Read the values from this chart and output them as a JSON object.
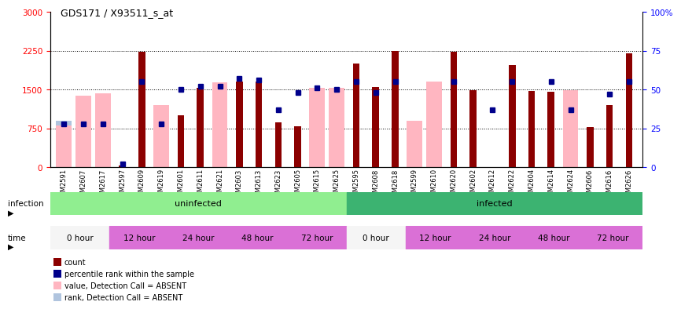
{
  "title": "GDS171 / X93511_s_at",
  "samples": [
    "GSM2591",
    "GSM2607",
    "GSM2617",
    "GSM2597",
    "GSM2609",
    "GSM2619",
    "GSM2601",
    "GSM2611",
    "GSM2621",
    "GSM2603",
    "GSM2613",
    "GSM2623",
    "GSM2605",
    "GSM2615",
    "GSM2625",
    "GSM2595",
    "GSM2608",
    "GSM2618",
    "GSM2599",
    "GSM2610",
    "GSM2620",
    "GSM2602",
    "GSM2612",
    "GSM2622",
    "GSM2604",
    "GSM2614",
    "GSM2624",
    "GSM2606",
    "GSM2616",
    "GSM2626"
  ],
  "count": [
    null,
    null,
    null,
    30,
    2230,
    null,
    1000,
    1530,
    null,
    1650,
    1660,
    870,
    790,
    null,
    null,
    2000,
    1550,
    2240,
    null,
    null,
    2230,
    1480,
    null,
    1970,
    1470,
    1450,
    null,
    780,
    1200,
    2200
  ],
  "percentile": [
    28,
    28,
    28,
    2,
    55,
    28,
    50,
    52,
    52,
    57,
    56,
    37,
    48,
    51,
    50,
    55,
    48,
    55,
    null,
    null,
    55,
    null,
    37,
    55,
    null,
    55,
    37,
    null,
    47,
    55
  ],
  "absent_value": [
    800,
    1380,
    1430,
    null,
    null,
    1200,
    null,
    null,
    1640,
    null,
    null,
    null,
    null,
    1530,
    1530,
    null,
    null,
    null,
    900,
    1650,
    null,
    null,
    null,
    null,
    null,
    null,
    1490,
    null,
    null,
    null
  ],
  "absent_rank": [
    900,
    900,
    null,
    null,
    null,
    null,
    null,
    null,
    null,
    null,
    null,
    null,
    null,
    null,
    null,
    null,
    null,
    null,
    840,
    1410,
    null,
    null,
    null,
    null,
    null,
    null,
    null,
    null,
    null,
    null
  ],
  "ylim_left": [
    0,
    3000
  ],
  "ylim_right": [
    0,
    100
  ],
  "yticks_left": [
    0,
    750,
    1500,
    2250,
    3000
  ],
  "yticks_right": [
    0,
    25,
    50,
    75,
    100
  ],
  "count_color": "#8b0000",
  "percentile_color": "#00008b",
  "absent_value_color": "#ffb6c1",
  "absent_rank_color": "#b0c4de",
  "uninfected_color": "#90ee90",
  "infected_color": "#3cb371",
  "time_0h_color": "#f5f5f5",
  "time_other_color": "#da70d6",
  "legend_items": [
    {
      "color": "#8b0000",
      "label": "count"
    },
    {
      "color": "#00008b",
      "label": "percentile rank within the sample"
    },
    {
      "color": "#ffb6c1",
      "label": "value, Detection Call = ABSENT"
    },
    {
      "color": "#b0c4de",
      "label": "rank, Detection Call = ABSENT"
    }
  ]
}
